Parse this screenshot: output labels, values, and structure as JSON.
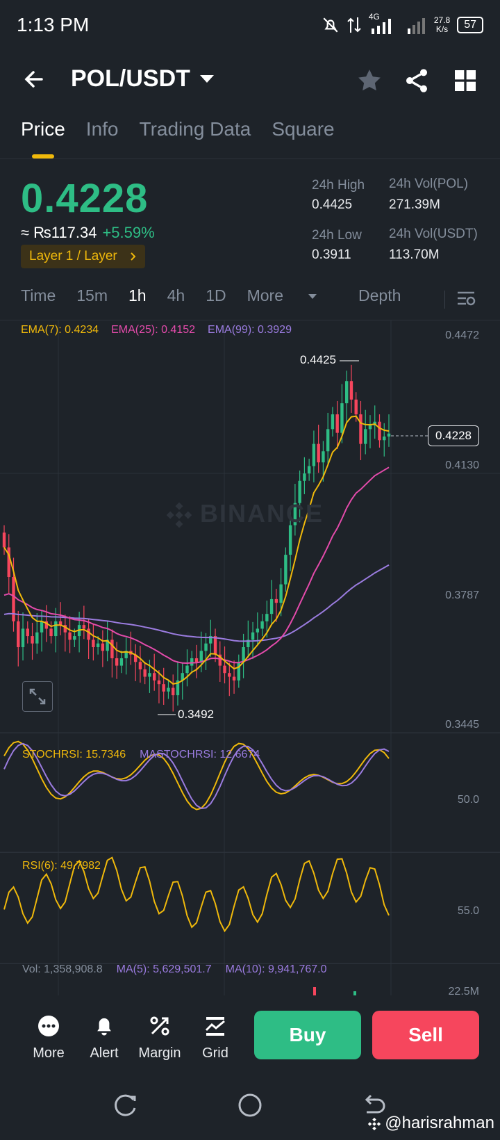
{
  "status_bar": {
    "time": "1:13 PM",
    "network": "4G",
    "speed_top": "27.8",
    "speed_unit": "K/s",
    "battery": "57"
  },
  "header": {
    "pair": "POL/USDT"
  },
  "tabs": [
    {
      "label": "Price",
      "active": true
    },
    {
      "label": "Info"
    },
    {
      "label": "Trading Data"
    },
    {
      "label": "Square"
    }
  ],
  "ticker": {
    "last_price": "0.4228",
    "fiat_value": "≈ ₨117.34",
    "change_pct": "+5.59%",
    "category_tag": "Layer 1 / Layer",
    "high_label": "24h High",
    "high_value": "0.4425",
    "low_label": "24h Low",
    "low_value": "0.3911",
    "vol_base_label": "24h Vol(POL)",
    "vol_base_value": "271.39M",
    "vol_quote_label": "24h Vol(USDT)",
    "vol_quote_value": "113.70M"
  },
  "intervals": {
    "time": "Time",
    "i15m": "15m",
    "i1h": "1h",
    "i4h": "4h",
    "i1d": "1D",
    "more": "More",
    "depth": "Depth",
    "selected": "1h"
  },
  "chart": {
    "watermark": "BINANCE",
    "ema7": "EMA(7): 0.4234",
    "ema25": "EMA(25): 0.4152",
    "ema99": "EMA(99): 0.3929",
    "colors": {
      "ema7": "#f0b90b",
      "ema25": "#e44bab",
      "ema99": "#9b7ce0",
      "up": "#2ebd85",
      "down": "#f6465d"
    },
    "y_ticks": [
      "0.4472",
      "0.4130",
      "0.3787",
      "0.3445"
    ],
    "current_price_tag": "0.4228",
    "high_annotation": "0.4425",
    "low_annotation": "0.3492",
    "stochrsi_label": "STOCHRSI: 15.7346",
    "mastochrsi_label": "MASTOCHRSI: 12.6674",
    "stoch_tick": "50.0",
    "rsi_label": "RSI(6): 49.7982",
    "rsi_tick": "55.0",
    "vol_label": "Vol: 1,358,908.8",
    "vol_ma5": "MA(5): 5,629,501.7",
    "vol_ma10": "MA(10): 9,941,767.0",
    "vol_tick": "22.5M"
  },
  "chart_data": {
    "type": "candlestick",
    "interval": "1h",
    "ylim": [
      0.3445,
      0.4472
    ],
    "high": 0.4425,
    "low": 0.3492,
    "last": 0.4228,
    "close_approx": [
      0.392,
      0.384,
      0.372,
      0.365,
      0.37,
      0.368,
      0.366,
      0.369,
      0.372,
      0.37,
      0.368,
      0.372,
      0.371,
      0.369,
      0.367,
      0.368,
      0.371,
      0.37,
      0.367,
      0.365,
      0.366,
      0.364,
      0.367,
      0.362,
      0.36,
      0.362,
      0.364,
      0.363,
      0.361,
      0.359,
      0.357,
      0.358,
      0.356,
      0.355,
      0.353,
      0.354,
      0.352,
      0.356,
      0.358,
      0.36,
      0.362,
      0.361,
      0.364,
      0.366,
      0.368,
      0.363,
      0.36,
      0.358,
      0.357,
      0.356,
      0.361,
      0.365,
      0.367,
      0.369,
      0.37,
      0.372,
      0.374,
      0.378,
      0.377,
      0.382,
      0.39,
      0.398,
      0.404,
      0.41,
      0.412,
      0.414,
      0.42,
      0.415,
      0.418,
      0.424,
      0.428,
      0.423,
      0.431,
      0.437,
      0.432,
      0.428,
      0.42,
      0.424,
      0.425,
      0.426,
      0.421,
      0.422,
      0.4228
    ]
  },
  "bottom_bar": {
    "more": "More",
    "alert": "Alert",
    "margin": "Margin",
    "grid": "Grid",
    "buy": "Buy",
    "sell": "Sell"
  },
  "credit": "@harisrahman"
}
